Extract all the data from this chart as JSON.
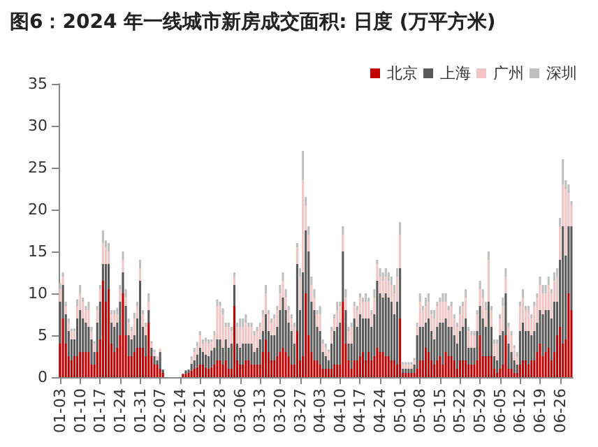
{
  "chart_data": {
    "type": "bar",
    "title": "图6：2024 年一线城市新房成交面积: 日度 (万平方米)",
    "stacked": true,
    "legend": "top right",
    "grid": false,
    "categories": [
      "01-03",
      null,
      null,
      null,
      null,
      null,
      null,
      "01-10",
      null,
      null,
      null,
      null,
      null,
      null,
      "01-17",
      null,
      null,
      null,
      null,
      null,
      null,
      "01-24",
      null,
      null,
      null,
      null,
      null,
      null,
      "01-31",
      null,
      null,
      null,
      null,
      null,
      null,
      "02-07",
      null,
      null,
      null,
      null,
      null,
      null,
      "02-14",
      null,
      null,
      null,
      null,
      null,
      null,
      "02-21",
      null,
      null,
      null,
      null,
      null,
      null,
      "02-28",
      null,
      null,
      null,
      null,
      null,
      null,
      "03-06",
      null,
      null,
      null,
      null,
      null,
      null,
      "03-13",
      null,
      null,
      null,
      null,
      null,
      null,
      "03-20",
      null,
      null,
      null,
      null,
      null,
      null,
      "03-27",
      null,
      null,
      null,
      null,
      null,
      null,
      "04-03",
      null,
      null,
      null,
      null,
      null,
      null,
      "04-10",
      null,
      null,
      null,
      null,
      null,
      null,
      "04-17",
      null,
      null,
      null,
      null,
      null,
      null,
      "04-24",
      null,
      null,
      null,
      null,
      null,
      null,
      "05-01",
      null,
      null,
      null,
      null,
      null,
      null,
      "05-08",
      null,
      null,
      null,
      null,
      null,
      null,
      "05-15",
      null,
      null,
      null,
      null,
      null,
      null,
      "05-22",
      null,
      null,
      null,
      null,
      null,
      null,
      "05-29",
      null,
      null,
      null,
      null,
      null,
      null,
      "06-05",
      null,
      null,
      null,
      null,
      null,
      null,
      "06-12",
      null,
      null,
      null,
      null,
      null,
      null,
      "06-19",
      null,
      null,
      null,
      null,
      null,
      null,
      "06-26",
      null,
      null,
      null,
      null
    ],
    "ylim": [
      0,
      35
    ],
    "yticks": [
      0,
      5,
      10,
      15,
      20,
      25,
      30,
      35
    ],
    "series": [
      {
        "name": "北京",
        "color": "#c00000",
        "values": [
          4,
          7,
          4,
          2.5,
          2,
          2.5,
          2.5,
          3,
          3,
          3,
          3,
          1.5,
          1.5,
          3,
          4.5,
          11.5,
          9,
          10.5,
          4,
          3,
          3.5,
          5,
          10,
          5,
          2.5,
          2.5,
          3,
          3.5,
          3.5,
          3.5,
          2.5,
          6.5,
          2.5,
          1.5,
          1.5,
          1,
          0.5,
          null,
          null,
          null,
          null,
          null,
          null,
          0.4,
          0.4,
          0.5,
          0.8,
          1,
          1.2,
          1.5,
          1.5,
          1.2,
          1,
          1.2,
          1.5,
          2,
          2,
          1.5,
          2,
          1,
          1,
          8.5,
          2,
          1.5,
          1.5,
          2,
          2,
          1.5,
          1.5,
          1.5,
          1.5,
          3,
          4.5,
          3,
          2,
          2,
          2.5,
          3,
          3.5,
          3,
          2.5,
          1.5,
          1.5,
          5.5,
          2,
          2.5,
          10,
          5,
          3,
          2,
          2,
          1.5,
          1,
          1,
          1,
          1,
          1.5,
          1.5,
          1.5,
          9,
          4,
          2,
          1,
          2,
          2,
          2.5,
          3,
          2,
          3,
          2,
          2.5,
          3.5,
          3,
          3,
          2.5,
          2.5,
          2,
          2,
          1.5,
          7,
          0.5,
          0.5,
          0.5,
          0.5,
          0.5,
          1,
          2,
          2,
          3.5,
          3,
          2,
          1.5,
          2,
          2.5,
          1.5,
          3,
          2.5,
          2.5,
          2,
          1,
          2,
          2,
          2,
          1.5,
          1.5,
          1.5,
          2,
          5,
          2.5,
          2.5,
          2.5,
          2.5,
          1,
          0.5,
          1,
          1.5,
          5,
          1,
          1,
          0.5,
          0.5,
          1.5,
          2,
          2,
          1.5,
          2,
          2,
          3,
          4,
          2.5,
          3,
          3.5,
          2,
          3,
          5,
          6,
          4,
          4.5,
          10,
          8
        ]
      },
      {
        "name": "上海",
        "color": "#595959",
        "values": [
          5,
          4,
          3.5,
          3,
          2.5,
          2,
          4.5,
          5,
          4,
          3.5,
          3,
          3,
          1.5,
          3.5,
          4.5,
          2,
          4.5,
          3,
          2.5,
          3,
          3,
          4,
          2.5,
          3.5,
          2.5,
          2,
          2,
          3.5,
          8,
          2.5,
          2.5,
          1.5,
          1,
          1,
          0.5,
          2,
          0.4,
          null,
          null,
          null,
          null,
          null,
          null,
          null,
          0.4,
          0.4,
          0.8,
          1,
          1.5,
          2,
          1.5,
          1.5,
          1.5,
          2,
          2,
          2.5,
          2.5,
          2,
          2.5,
          2.5,
          3,
          2.5,
          2,
          2,
          2.5,
          2,
          2,
          2.5,
          1.5,
          2,
          3,
          2.5,
          3,
          2.5,
          3,
          3,
          3.5,
          5,
          6,
          5,
          4,
          4,
          2.5,
          8,
          6,
          10,
          7.5,
          10,
          6,
          6,
          4,
          4,
          2,
          1.5,
          1,
          3,
          4,
          4.5,
          5,
          6,
          4,
          2,
          3,
          5,
          4,
          5,
          4,
          5,
          4,
          4,
          5,
          8,
          7,
          6.5,
          7.5,
          7,
          7,
          5.5,
          7.5,
          6,
          0.5,
          0.5,
          0.5,
          0.5,
          1,
          4,
          4,
          4,
          3,
          4,
          3.5,
          3,
          4,
          4,
          5,
          4,
          3.5,
          3.5,
          3,
          3,
          3.5,
          4,
          5,
          2,
          2,
          2,
          3.5,
          3.5,
          4.5,
          3.5,
          6.5,
          3.5,
          1.5,
          1.5,
          4,
          4,
          5,
          3,
          2,
          1.5,
          1,
          4,
          4.5,
          3.5,
          4,
          3,
          3.5,
          3.5,
          4,
          5,
          5,
          4.5,
          5,
          6,
          4,
          8,
          14,
          10,
          8,
          10
        ]
      },
      {
        "name": "广州",
        "color": "#f2c4c4",
        "values": [
          1.5,
          1,
          1,
          1,
          1,
          1,
          1.5,
          2,
          2,
          1.5,
          2,
          1,
          1,
          1.5,
          1.5,
          2.5,
          2,
          1.5,
          1,
          1.5,
          1,
          1.5,
          1.5,
          1,
          1.5,
          1,
          2,
          1.5,
          1.5,
          1.5,
          1,
          1,
          0.5,
          0.5,
          0.5,
          0.4,
          null,
          null,
          null,
          null,
          null,
          null,
          null,
          null,
          null,
          null,
          0.5,
          1,
          1,
          1.5,
          1,
          1.5,
          1.5,
          1,
          1.5,
          4,
          4,
          4,
          1.5,
          2.5,
          1.5,
          1,
          2,
          2.5,
          2,
          2.5,
          2,
          2,
          2,
          2,
          1.5,
          2,
          2.5,
          2,
          1.5,
          2,
          2,
          2,
          2,
          1.5,
          1.5,
          1.5,
          2,
          2,
          4,
          11,
          3,
          2,
          2,
          1.5,
          1.5,
          2,
          1,
          1,
          1,
          1.5,
          1.5,
          2,
          2,
          2,
          1.5,
          1.5,
          2,
          1.5,
          2,
          2,
          2,
          2,
          2,
          1.5,
          2,
          2,
          2,
          2,
          2,
          2,
          2,
          2.5,
          3,
          4,
          0.5,
          0.5,
          0.5,
          0.5,
          0.5,
          1,
          3,
          2,
          2,
          2,
          2,
          2.5,
          2.5,
          2.5,
          2.5,
          2,
          2,
          2.5,
          2,
          2,
          2,
          2.5,
          2.5,
          2,
          1.5,
          1.5,
          2,
          2,
          2.5,
          2,
          5,
          2,
          1.5,
          2,
          2,
          3,
          2,
          2,
          2,
          1.5,
          1,
          3,
          3,
          2.5,
          2.5,
          2,
          3,
          3,
          3,
          2.5,
          2,
          3,
          3,
          2.5,
          3,
          4,
          5,
          8,
          4,
          2.5
        ]
      },
      {
        "name": "深圳",
        "color": "#bfbfbf",
        "values": [
          0.7,
          0.5,
          0.5,
          0.5,
          0.3,
          0.3,
          0.8,
          1,
          0.5,
          0.5,
          1,
          0.5,
          0.3,
          0.5,
          0.5,
          1.5,
          0.8,
          1,
          0.5,
          0.5,
          0.8,
          0.5,
          1,
          1,
          0.5,
          0.5,
          0.7,
          0.5,
          1,
          0.5,
          0.5,
          1,
          0.3,
          0.3,
          null,
          null,
          null,
          null,
          null,
          null,
          null,
          null,
          null,
          null,
          null,
          null,
          0.4,
          0.5,
          0.5,
          0.5,
          0.5,
          0.5,
          0.5,
          0.3,
          0.5,
          0.8,
          0.5,
          0.7,
          0.5,
          0.5,
          0.5,
          0.5,
          0.5,
          1,
          1,
          1,
          0.5,
          0.5,
          0.5,
          0.5,
          0.5,
          0.5,
          1,
          0.5,
          0.5,
          0.5,
          0.5,
          1,
          1,
          1,
          0.5,
          0.5,
          0.5,
          0.5,
          1,
          3.5,
          1,
          1,
          1,
          1,
          0.5,
          1,
          0.5,
          0.5,
          0.3,
          0.5,
          0.5,
          1,
          0.5,
          1,
          1,
          0.5,
          0.5,
          0.5,
          0.5,
          0.5,
          0.5,
          1,
          0.5,
          0.5,
          1,
          0.5,
          1,
          1,
          1,
          1,
          1,
          1,
          1,
          1.5,
          0.3,
          0.3,
          0.3,
          0.3,
          0.3,
          0.5,
          1,
          0.5,
          1,
          1,
          0.5,
          1,
          0.5,
          0.5,
          1,
          1,
          0.5,
          0.5,
          0.5,
          0.5,
          1,
          0.5,
          1,
          0.5,
          0.5,
          0.5,
          0.5,
          1,
          1,
          1,
          1,
          0.5,
          0.5,
          0.5,
          0.5,
          1,
          1,
          0.5,
          0.5,
          0.3,
          0.5,
          0.5,
          1,
          0.5,
          0.5,
          0.5,
          0.5,
          0.5,
          1,
          1,
          1,
          1,
          0.5,
          1,
          1,
          1,
          3,
          1,
          1,
          0.5
        ]
      }
    ]
  }
}
